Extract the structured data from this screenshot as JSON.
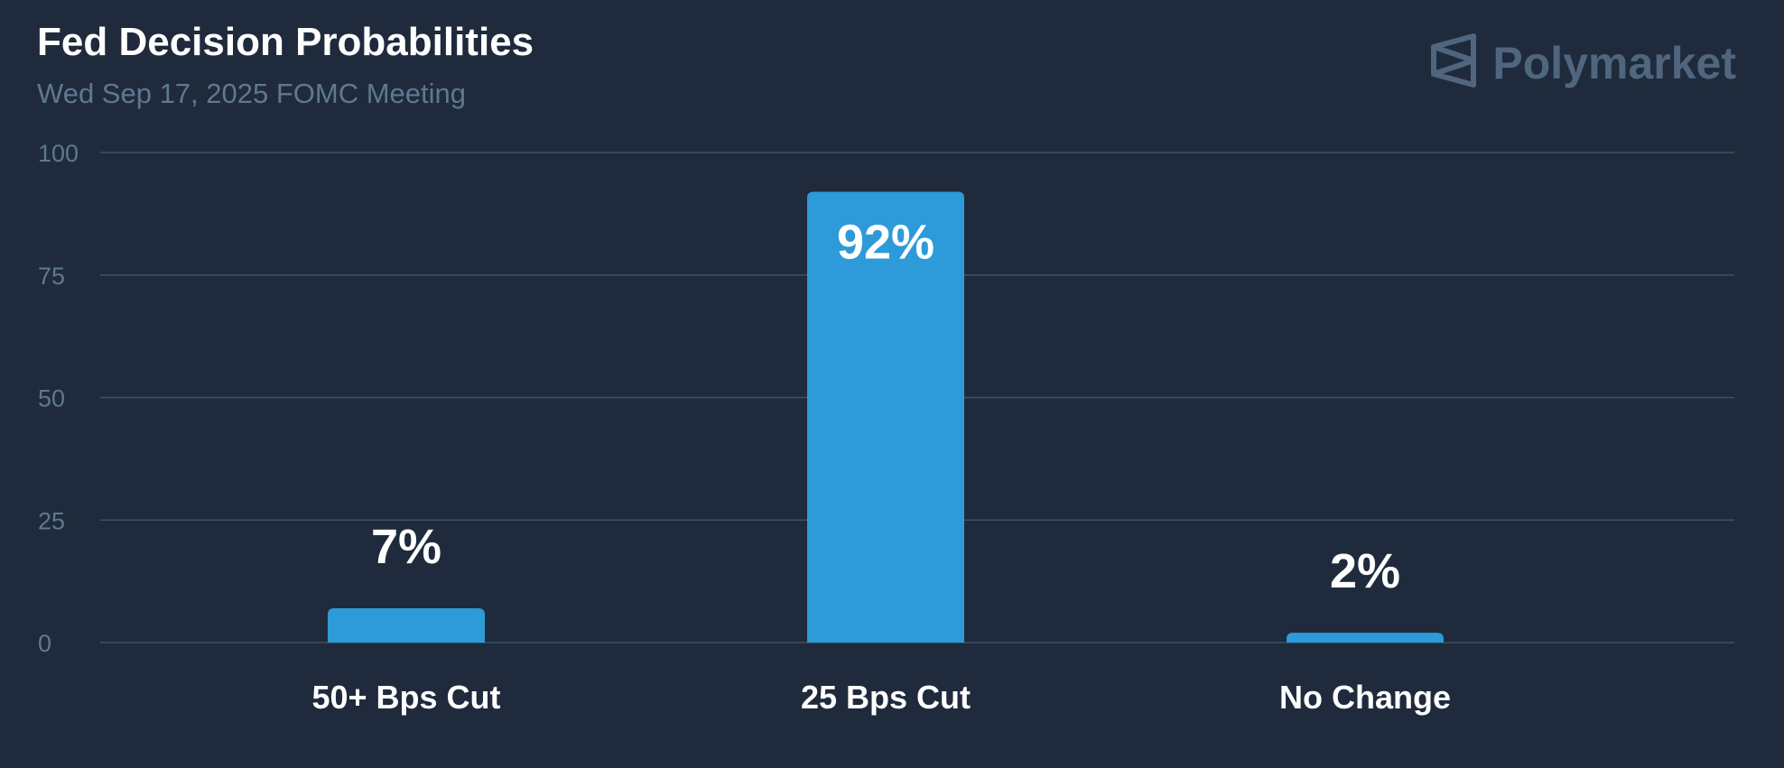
{
  "header": {
    "title": "Fed Decision Probabilities",
    "subtitle": "Wed Sep 17, 2025 FOMC Meeting"
  },
  "brand": {
    "name": "Polymarket",
    "icon": "polymarket-logo-icon"
  },
  "colors": {
    "background": "#1f2b3c",
    "bar": "#2d9ad9",
    "grid": "#3d5266",
    "tick_text": "#5f7890",
    "label_text": "#ffffff",
    "brand": "#50667e"
  },
  "chart_data": {
    "type": "bar",
    "title": "Fed Decision Probabilities",
    "subtitle": "Wed Sep 17, 2025 FOMC Meeting",
    "categories": [
      "50+ Bps Cut",
      "25 Bps Cut",
      "No Change"
    ],
    "values": [
      7,
      92,
      2
    ],
    "data_labels": [
      "7%",
      "92%",
      "2%"
    ],
    "xlabel": "",
    "ylabel": "",
    "ylim": [
      0,
      100
    ],
    "yticks": [
      0,
      25,
      50,
      75,
      100
    ],
    "grid": true,
    "legend": "none"
  }
}
